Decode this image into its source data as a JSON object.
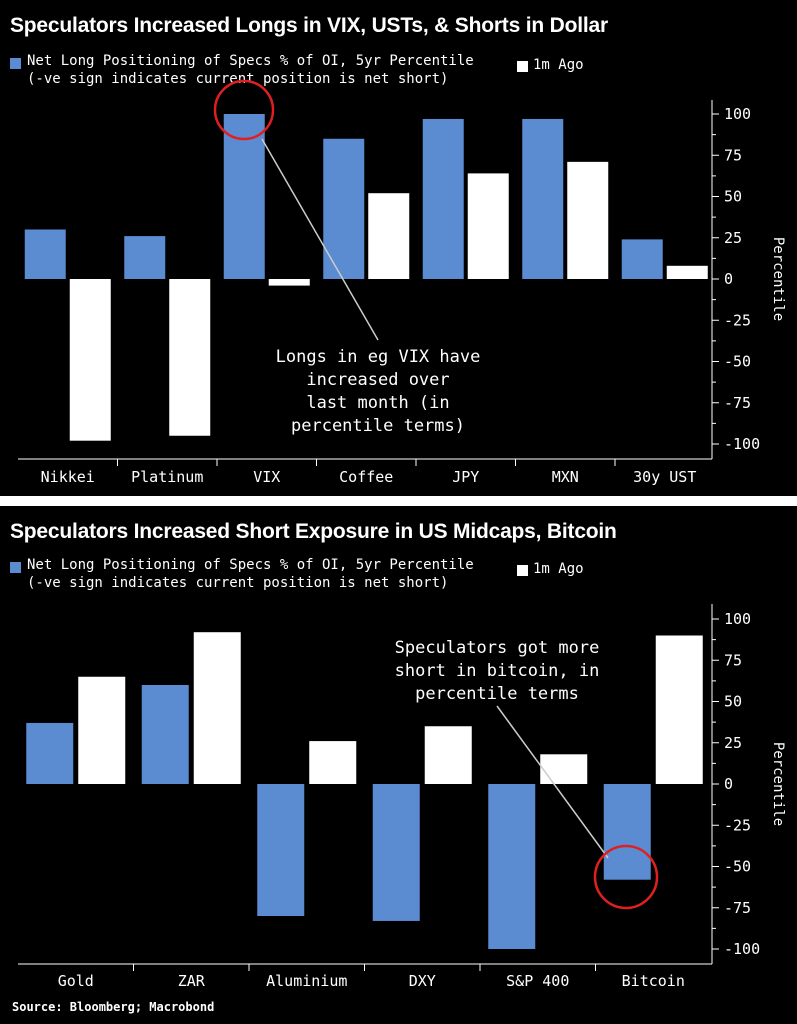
{
  "charts": [
    {
      "title": "Speculators Increased Longs in VIX, USTs, & Shorts in Dollar",
      "legend_line1": "Net Long Positioning of Specs % of OI, 5yr Percentile",
      "legend_line2": "(-ve sign indicates current position is net short)",
      "legend_1m": "1m Ago",
      "annotation": [
        "Longs in eg VIX have",
        "increased over",
        "last month (in",
        "percentile terms)"
      ]
    },
    {
      "title": "Speculators Increased Short Exposure in US Midcaps, Bitcoin",
      "legend_line1": "Net Long Positioning of Specs % of OI, 5yr Percentile",
      "legend_line2": "(-ve sign indicates current position is net short)",
      "legend_1m": "1m Ago",
      "annotation": [
        "Speculators got more",
        "short in bitcoin, in",
        "percentile terms"
      ]
    }
  ],
  "source": "Source: Bloomberg; Macrobond",
  "colors": {
    "current": "#5b8bd0",
    "month_ago": "#ffffff",
    "highlight": "#e02020",
    "background": "#000000"
  },
  "chart_data": [
    {
      "type": "bar",
      "title": "Speculators Increased Longs in VIX, USTs, & Shorts in Dollar",
      "ylabel": "Percentile",
      "ylim": [
        -100,
        100
      ],
      "yticks": [
        100,
        75,
        50,
        25,
        0,
        -25,
        -50,
        -75,
        -100
      ],
      "categories": [
        "Nikkei",
        "Platinum",
        "VIX",
        "Coffee",
        "JPY",
        "MXN",
        "30y UST"
      ],
      "series": [
        {
          "name": "Net Long Positioning of Specs % of OI, 5yr Percentile",
          "values": [
            30,
            26,
            100,
            85,
            97,
            97,
            24
          ]
        },
        {
          "name": "1m Ago",
          "values": [
            -98,
            -95,
            -4,
            52,
            64,
            71,
            8
          ]
        }
      ],
      "highlight_category": "VIX"
    },
    {
      "type": "bar",
      "title": "Speculators Increased Short Exposure in US Midcaps, Bitcoin",
      "ylabel": "Percentile",
      "ylim": [
        -100,
        100
      ],
      "yticks": [
        100,
        75,
        50,
        25,
        0,
        -25,
        -50,
        -75,
        -100
      ],
      "categories": [
        "Gold",
        "ZAR",
        "Aluminium",
        "DXY",
        "S&P 400",
        "Bitcoin"
      ],
      "series": [
        {
          "name": "Net Long Positioning of Specs % of OI, 5yr Percentile",
          "values": [
            37,
            60,
            -80,
            -83,
            -100,
            -58
          ]
        },
        {
          "name": "1m Ago",
          "values": [
            65,
            92,
            26,
            35,
            18,
            90
          ]
        }
      ],
      "highlight_category": "Bitcoin"
    }
  ]
}
